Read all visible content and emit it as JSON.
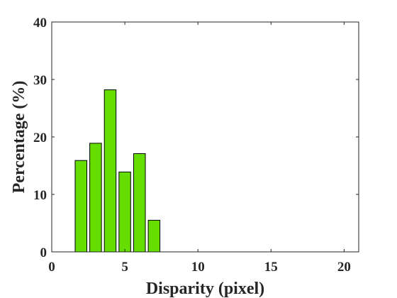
{
  "chart_data": {
    "type": "bar",
    "x": [
      2,
      3,
      4,
      5,
      6,
      7
    ],
    "values": [
      15.9,
      18.9,
      28.2,
      13.9,
      17.1,
      5.5
    ],
    "xlabel": "Disparity (pixel)",
    "ylabel": "Percentage (%)",
    "xlim": [
      0,
      21
    ],
    "ylim": [
      0,
      40
    ],
    "xticks": [
      0,
      5,
      10,
      15,
      20
    ],
    "yticks": [
      0,
      10,
      20,
      30,
      40
    ],
    "bar_width": 0.8,
    "grid": false,
    "colors": {
      "bar_fill": "#66dd00",
      "bar_edge": "#000000",
      "axis": "#262626"
    }
  }
}
